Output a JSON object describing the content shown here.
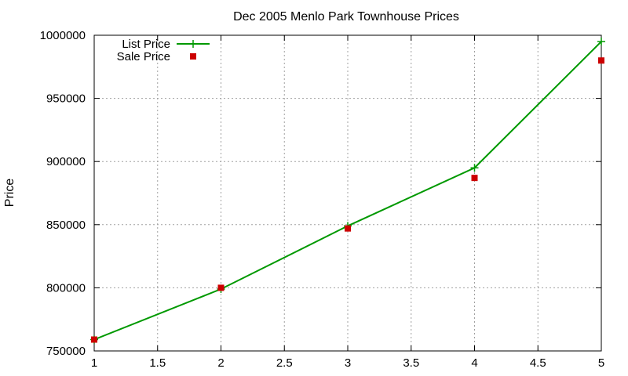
{
  "chart_data": {
    "type": "line",
    "title": "Dec 2005 Menlo Park Townhouse Prices",
    "xlabel": "",
    "ylabel": "Price",
    "xlim": [
      1,
      5
    ],
    "ylim": [
      750000,
      1000000
    ],
    "x_ticks": [
      "1",
      "1.5",
      "2",
      "2.5",
      "3",
      "3.5",
      "4",
      "4.5",
      "5"
    ],
    "y_ticks": [
      "750000",
      "800000",
      "850000",
      "900000",
      "950000",
      "1000000"
    ],
    "grid": true,
    "legend_position": "top-left",
    "series": [
      {
        "name": "List Price",
        "style": "lines+points",
        "marker": "plus",
        "color": "#009900",
        "x": [
          1,
          2,
          3,
          4,
          5
        ],
        "y": [
          759000,
          799000,
          849000,
          895000,
          995000
        ]
      },
      {
        "name": "Sale Price",
        "style": "points",
        "marker": "square",
        "color": "#cc0000",
        "x": [
          1,
          2,
          3,
          4,
          5
        ],
        "y": [
          759000,
          800000,
          847000,
          887000,
          980000
        ]
      }
    ]
  }
}
